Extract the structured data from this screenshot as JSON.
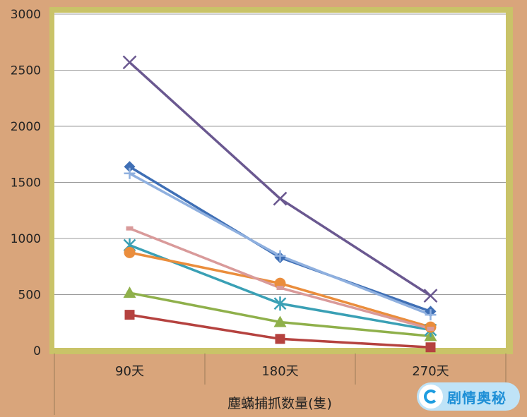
{
  "chart_data": {
    "type": "line",
    "categories": [
      "90天",
      "180天",
      "270天"
    ],
    "xlabel": "塵蟎捕抓数量(隻)",
    "ylabel": "",
    "title": "",
    "ylim": [
      0,
      3000
    ],
    "yticks": [
      0,
      500,
      1000,
      1500,
      2000,
      2500,
      3000
    ],
    "grid": true,
    "legend": "none",
    "series": [
      {
        "color": "#3f6fb5",
        "marker": "diamond",
        "values": [
          1640,
          830,
          350
        ]
      },
      {
        "color": "#b5423f",
        "marker": "square",
        "values": [
          320,
          105,
          30
        ]
      },
      {
        "color": "#8fb04b",
        "marker": "triangle",
        "values": [
          515,
          255,
          130
        ]
      },
      {
        "color": "#6a5890",
        "marker": "x",
        "values": [
          2570,
          1355,
          490
        ]
      },
      {
        "color": "#3aa0b5",
        "marker": "star",
        "values": [
          940,
          420,
          185
        ]
      },
      {
        "color": "#ea8d3c",
        "marker": "circle",
        "values": [
          875,
          600,
          210
        ]
      },
      {
        "color": "#8fb0df",
        "marker": "plus",
        "values": [
          1580,
          845,
          320
        ]
      },
      {
        "color": "#d99a9a",
        "marker": "dash",
        "values": [
          1090,
          560,
          195
        ]
      }
    ]
  },
  "watermark": {
    "text": "剧情奥秘"
  }
}
